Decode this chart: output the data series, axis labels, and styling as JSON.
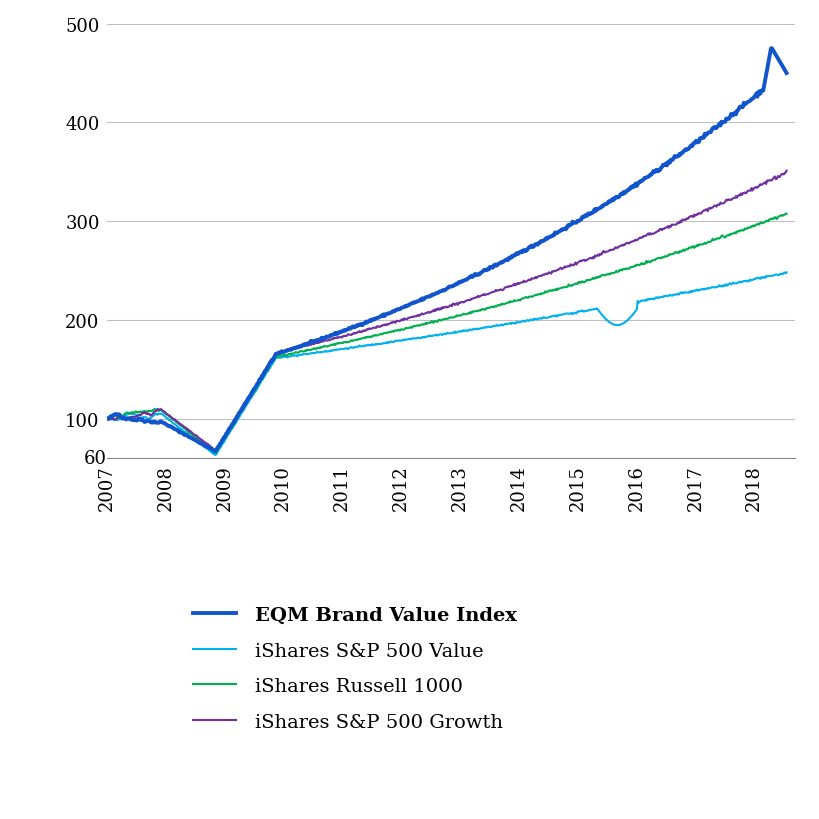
{
  "eqm_color": "#1155cc",
  "eqm_linewidth": 2.8,
  "sp500v_color": "#00b0f0",
  "sp500v_linewidth": 1.5,
  "russell_color": "#00b050",
  "russell_linewidth": 1.5,
  "sp500g_color": "#7030a0",
  "sp500g_linewidth": 1.5,
  "ylim": [
    60,
    500
  ],
  "yticks": [
    100,
    200,
    300,
    400,
    500
  ],
  "xlim_start": 2007.0,
  "xlim_end": 2018.7,
  "xtick_years": [
    2007,
    2008,
    2009,
    2010,
    2011,
    2012,
    2013,
    2014,
    2015,
    2016,
    2017,
    2018
  ],
  "legend_labels": [
    "EQM Brand Value Index",
    "iShares S&P 500 Value",
    "iShares Russell 1000",
    "iShares S&P 500 Growth"
  ],
  "background_color": "#ffffff",
  "grid_color": "#c0c0c0",
  "figure_size": [
    8.2,
    8.2
  ],
  "dpi": 100
}
